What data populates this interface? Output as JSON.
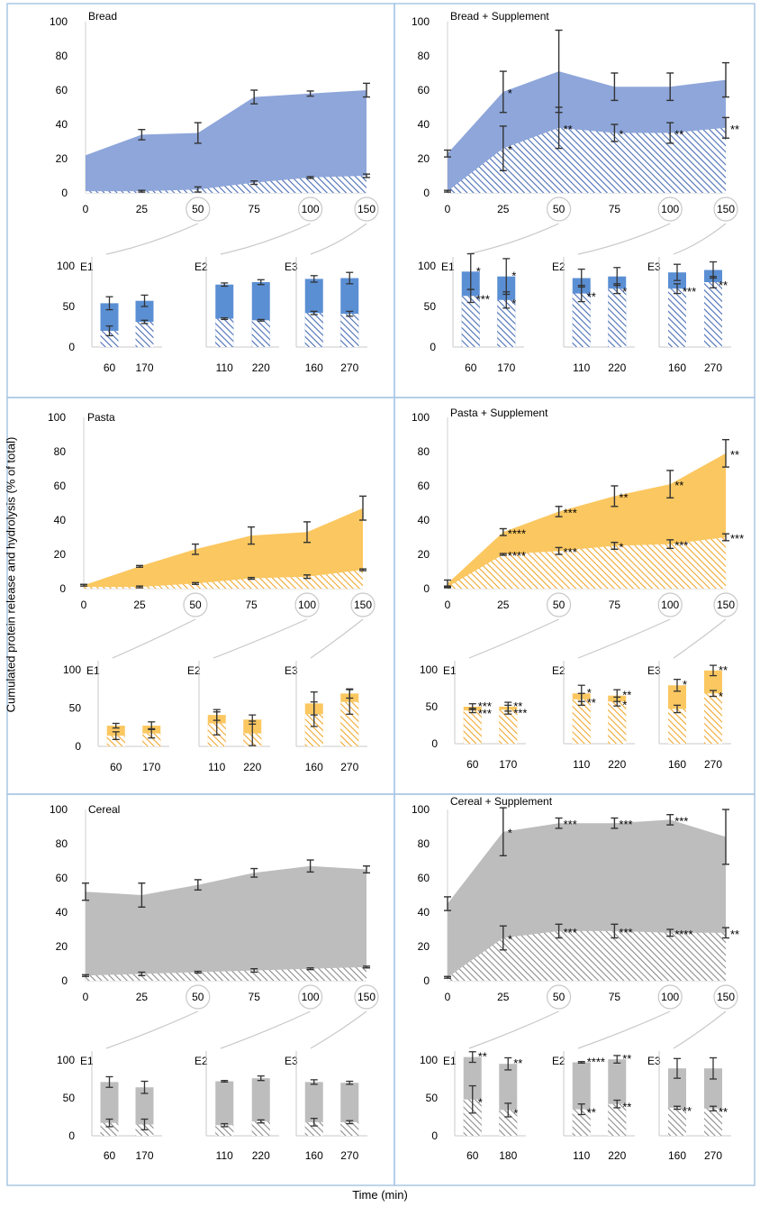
{
  "figure": {
    "ylabel": "Cumulated protein release and hydrolysis (% of total)",
    "xlabel": "Time (min)"
  },
  "chart_data": [
    {
      "type": "area",
      "title": "Bread",
      "color": "#8ea6da",
      "color_dark": "#4a6db5",
      "x": [
        0,
        25,
        50,
        75,
        100,
        150
      ],
      "x_ticks": [
        "0",
        "25",
        "50",
        "75",
        "100",
        "150"
      ],
      "circled_ticks": [
        "50",
        "100",
        "150"
      ],
      "y_ticks": [
        "0",
        "20",
        "40",
        "60",
        "80",
        "100"
      ],
      "ylim": [
        0,
        100
      ],
      "series": [
        {
          "name": "protein release",
          "values": [
            22,
            34,
            35,
            56,
            58,
            60
          ],
          "err": [
            0,
            3,
            6,
            4,
            1.5,
            4
          ],
          "stars": [
            "",
            "",
            "",
            "",
            "",
            ""
          ]
        },
        {
          "name": "hydrolysis",
          "values": [
            1,
            1,
            2,
            6,
            9,
            10
          ],
          "err": [
            0,
            0.5,
            1.5,
            1,
            0.5,
            1
          ],
          "stars": [
            "",
            "",
            "",
            "",
            "",
            ""
          ]
        }
      ],
      "sub": [
        {
          "name": "E1",
          "labels": [
            "60",
            "170"
          ],
          "total": [
            54,
            57
          ],
          "total_err": [
            8,
            7
          ],
          "hydro": [
            20,
            31
          ],
          "hydro_err": [
            6,
            2
          ],
          "total_stars": [
            "",
            ""
          ],
          "hydro_stars": [
            "",
            ""
          ]
        },
        {
          "name": "E2",
          "labels": [
            "110",
            "220"
          ],
          "total": [
            77,
            80
          ],
          "total_err": [
            2,
            3
          ],
          "hydro": [
            35,
            33
          ],
          "hydro_err": [
            1,
            1
          ],
          "total_stars": [
            "",
            ""
          ],
          "hydro_stars": [
            "",
            ""
          ]
        },
        {
          "name": "E3",
          "labels": [
            "160",
            "270"
          ],
          "total": [
            84,
            85
          ],
          "total_err": [
            4,
            7
          ],
          "hydro": [
            42,
            41
          ],
          "hydro_err": [
            2,
            3
          ],
          "total_stars": [
            "",
            ""
          ],
          "hydro_stars": [
            "",
            ""
          ]
        }
      ],
      "sub_y_ticks": [
        "0",
        "50",
        "100"
      ]
    },
    {
      "type": "area",
      "title": "Bread + Supplement",
      "color": "#8ea6da",
      "color_dark": "#4a6db5",
      "x": [
        0,
        25,
        50,
        75,
        100,
        150
      ],
      "x_ticks": [
        "0",
        "25",
        "50",
        "75",
        "100",
        "150"
      ],
      "circled_ticks": [
        "50",
        "100",
        "150"
      ],
      "y_ticks": [
        "0",
        "20",
        "40",
        "60",
        "80",
        "100"
      ],
      "ylim": [
        0,
        100
      ],
      "series": [
        {
          "name": "protein release",
          "values": [
            23,
            59,
            71,
            62,
            62,
            66
          ],
          "err": [
            2,
            12,
            24,
            8,
            8,
            10
          ],
          "stars": [
            "",
            "*",
            "",
            "",
            "",
            ""
          ]
        },
        {
          "name": "hydrolysis",
          "values": [
            1,
            26,
            38,
            35,
            35,
            38
          ],
          "err": [
            0.5,
            13,
            12,
            5,
            6,
            6
          ],
          "stars": [
            "",
            "*",
            "**",
            "*",
            "**",
            "**"
          ]
        }
      ],
      "sub": [
        {
          "name": "E1",
          "labels": [
            "60",
            "170"
          ],
          "total": [
            93,
            87
          ],
          "total_err": [
            22,
            22
          ],
          "hydro": [
            63,
            58
          ],
          "hydro_err": [
            8,
            10
          ],
          "total_stars": [
            "*",
            "*"
          ],
          "hydro_stars": [
            "***",
            "*"
          ]
        },
        {
          "name": "E2",
          "labels": [
            "110",
            "220"
          ],
          "total": [
            85,
            87
          ],
          "total_err": [
            11,
            11
          ],
          "hydro": [
            66,
            72
          ],
          "hydro_err": [
            10,
            6
          ],
          "total_stars": [
            "",
            ""
          ],
          "hydro_stars": [
            "**",
            "*"
          ]
        },
        {
          "name": "E3",
          "labels": [
            "160",
            "270"
          ],
          "total": [
            92,
            95
          ],
          "total_err": [
            10,
            10
          ],
          "hydro": [
            72,
            80
          ],
          "hydro_err": [
            6,
            7
          ],
          "total_stars": [
            "",
            ""
          ],
          "hydro_stars": [
            "***",
            "**"
          ]
        }
      ],
      "sub_y_ticks": [
        "0",
        "50",
        "100"
      ]
    },
    {
      "type": "area",
      "title": "Pasta",
      "color": "#fbc760",
      "color_dark": "#f0a830",
      "x": [
        0,
        25,
        50,
        75,
        100,
        150
      ],
      "x_ticks": [
        "0",
        "25",
        "50",
        "75",
        "100",
        "150"
      ],
      "circled_ticks": [
        "50",
        "100",
        "150"
      ],
      "y_ticks": [
        "0",
        "20",
        "40",
        "60",
        "80",
        "100"
      ],
      "ylim": [
        0,
        100
      ],
      "series": [
        {
          "name": "protein release",
          "values": [
            2,
            13,
            23,
            31,
            33,
            47
          ],
          "err": [
            0.5,
            0.5,
            3,
            5,
            6,
            7
          ],
          "stars": [
            "",
            "",
            "",
            "",
            "",
            ""
          ]
        },
        {
          "name": "hydrolysis",
          "values": [
            1,
            1,
            3,
            6,
            7,
            11
          ],
          "err": [
            0,
            0.5,
            0.5,
            0.5,
            1,
            0.5
          ],
          "stars": [
            "",
            "",
            "",
            "",
            "",
            ""
          ]
        }
      ],
      "sub": [
        {
          "name": "E1",
          "labels": [
            "60",
            "170"
          ],
          "total": [
            27,
            27
          ],
          "total_err": [
            3,
            5
          ],
          "hydro": [
            14,
            17
          ],
          "hydro_err": [
            5,
            6
          ],
          "total_stars": [
            "",
            ""
          ],
          "hydro_stars": [
            "",
            ""
          ]
        },
        {
          "name": "E2",
          "labels": [
            "110",
            "220"
          ],
          "total": [
            41,
            35
          ],
          "total_err": [
            7,
            6
          ],
          "hydro": [
            30,
            17
          ],
          "hydro_err": [
            15,
            16
          ],
          "total_stars": [
            "",
            ""
          ],
          "hydro_stars": [
            "",
            ""
          ]
        },
        {
          "name": "E3",
          "labels": [
            "160",
            "270"
          ],
          "total": [
            56,
            69
          ],
          "total_err": [
            15,
            6
          ],
          "hydro": [
            42,
            58
          ],
          "hydro_err": [
            16,
            16
          ],
          "total_stars": [
            "",
            ""
          ],
          "hydro_stars": [
            "",
            ""
          ]
        }
      ],
      "sub_y_ticks": [
        "0",
        "50",
        "100"
      ]
    },
    {
      "type": "area",
      "title": "Pasta + Supplement",
      "color": "#fbc760",
      "color_dark": "#f0a830",
      "x": [
        0,
        25,
        50,
        75,
        100,
        150
      ],
      "x_ticks": [
        "0",
        "25",
        "50",
        "75",
        "100",
        "150"
      ],
      "circled_ticks": [
        "50",
        "100",
        "150"
      ],
      "y_ticks": [
        "0",
        "20",
        "40",
        "60",
        "80",
        "100"
      ],
      "ylim": [
        0,
        100
      ],
      "series": [
        {
          "name": "protein release",
          "values": [
            3,
            33,
            45,
            54,
            61,
            79
          ],
          "err": [
            2,
            2,
            3,
            6,
            8,
            8
          ],
          "stars": [
            "",
            "****",
            "***",
            "**",
            "**",
            "**"
          ]
        },
        {
          "name": "hydrolysis",
          "values": [
            1,
            20,
            22,
            25,
            26,
            30
          ],
          "err": [
            0.5,
            0.5,
            2,
            2,
            2.5,
            2
          ],
          "stars": [
            "",
            "****",
            "***",
            "*",
            "***",
            "***"
          ]
        }
      ],
      "sub": [
        {
          "name": "E1",
          "labels": [
            "60",
            "170"
          ],
          "total": [
            50,
            50
          ],
          "total_err": [
            4,
            6
          ],
          "hydro": [
            45,
            46
          ],
          "hydro_err": [
            3,
            6
          ],
          "total_stars": [
            "***",
            "**"
          ],
          "hydro_stars": [
            "***",
            "***"
          ]
        },
        {
          "name": "E2",
          "labels": [
            "110",
            "220"
          ],
          "total": [
            68,
            65
          ],
          "total_err": [
            11,
            8
          ],
          "hydro": [
            60,
            57
          ],
          "hydro_err": [
            8,
            6
          ],
          "total_stars": [
            "*",
            "**"
          ],
          "hydro_stars": [
            "**",
            "*"
          ]
        },
        {
          "name": "E3",
          "labels": [
            "160",
            "270"
          ],
          "total": [
            79,
            99
          ],
          "total_err": [
            8,
            7
          ],
          "hydro": [
            47,
            68
          ],
          "hydro_err": [
            5,
            4
          ],
          "total_stars": [
            "*",
            "**"
          ],
          "hydro_stars": [
            "",
            "*"
          ]
        }
      ],
      "sub_y_ticks": [
        "0",
        "50",
        "100"
      ]
    },
    {
      "type": "area",
      "title": "Cereal",
      "color": "#bdbdbd",
      "color_dark": "#8c8c8c",
      "x": [
        0,
        25,
        50,
        75,
        100,
        150
      ],
      "x_ticks": [
        "0",
        "25",
        "50",
        "75",
        "100",
        "150"
      ],
      "circled_ticks": [
        "50",
        "100",
        "150"
      ],
      "y_ticks": [
        "0",
        "20",
        "40",
        "60",
        "80",
        "100"
      ],
      "ylim": [
        0,
        100
      ],
      "series": [
        {
          "name": "protein release",
          "values": [
            52,
            50,
            56,
            63,
            67,
            65
          ],
          "err": [
            5,
            7,
            3,
            2.5,
            3.5,
            2
          ],
          "stars": [
            "",
            "",
            "",
            "",
            "",
            ""
          ]
        },
        {
          "name": "hydrolysis",
          "values": [
            3,
            4,
            5,
            6,
            7,
            8
          ],
          "err": [
            0.5,
            1,
            0.5,
            1,
            0.5,
            0.5
          ],
          "stars": [
            "",
            "",
            "",
            "",
            "",
            ""
          ]
        }
      ],
      "sub": [
        {
          "name": "E1",
          "labels": [
            "60",
            "170"
          ],
          "total": [
            71,
            64
          ],
          "total_err": [
            7,
            8
          ],
          "hydro": [
            17,
            15
          ],
          "hydro_err": [
            5,
            7
          ],
          "total_stars": [
            "",
            ""
          ],
          "hydro_stars": [
            "",
            ""
          ]
        },
        {
          "name": "E2",
          "labels": [
            "110",
            "220"
          ],
          "total": [
            72,
            76
          ],
          "total_err": [
            1,
            3
          ],
          "hydro": [
            14,
            19
          ],
          "hydro_err": [
            2,
            2
          ],
          "total_stars": [
            "",
            ""
          ],
          "hydro_stars": [
            "",
            ""
          ]
        },
        {
          "name": "E3",
          "labels": [
            "160",
            "270"
          ],
          "total": [
            71,
            70
          ],
          "total_err": [
            3,
            2
          ],
          "hydro": [
            18,
            18
          ],
          "hydro_err": [
            5,
            2
          ],
          "total_stars": [
            "",
            ""
          ],
          "hydro_stars": [
            "",
            ""
          ]
        }
      ],
      "sub_y_ticks": [
        "0",
        "50",
        "100"
      ]
    },
    {
      "type": "area",
      "title": "Cereal + Supplement",
      "color": "#bdbdbd",
      "color_dark": "#8c8c8c",
      "x": [
        0,
        25,
        50,
        75,
        100,
        150
      ],
      "x_ticks": [
        "0",
        "25",
        "50",
        "75",
        "100",
        "150"
      ],
      "circled_ticks": [
        "50",
        "100",
        "150"
      ],
      "y_ticks": [
        "0",
        "20",
        "40",
        "60",
        "80",
        "100"
      ],
      "ylim": [
        0,
        100
      ],
      "series": [
        {
          "name": "protein release",
          "values": [
            45,
            87,
            92,
            92,
            94,
            84
          ],
          "err": [
            4,
            14,
            3,
            3,
            3,
            16
          ],
          "stars": [
            "",
            "*",
            "***",
            "***",
            "***",
            ""
          ]
        },
        {
          "name": "hydrolysis",
          "values": [
            2,
            25,
            29,
            29,
            28,
            28
          ],
          "err": [
            0.5,
            7,
            4,
            4,
            2,
            3
          ],
          "stars": [
            "",
            "*",
            "***",
            "***",
            "****",
            "**"
          ]
        }
      ],
      "sub": [
        {
          "name": "E1",
          "labels": [
            "60",
            "180"
          ],
          "total": [
            104,
            95
          ],
          "total_err": [
            7,
            8
          ],
          "hydro": [
            48,
            34
          ],
          "hydro_err": [
            18,
            9
          ],
          "total_stars": [
            "**",
            "**"
          ],
          "hydro_stars": [
            "*",
            "*"
          ]
        },
        {
          "name": "E2",
          "labels": [
            "110",
            "220"
          ],
          "total": [
            97,
            101
          ],
          "total_err": [
            1,
            5
          ],
          "hydro": [
            35,
            42
          ],
          "hydro_err": [
            7,
            5
          ],
          "total_stars": [
            "****",
            "**"
          ],
          "hydro_stars": [
            "**",
            "**"
          ]
        },
        {
          "name": "E3",
          "labels": [
            "160",
            "270"
          ],
          "total": [
            89,
            89
          ],
          "total_err": [
            13,
            14
          ],
          "hydro": [
            37,
            36
          ],
          "hydro_err": [
            2,
            3
          ],
          "total_stars": [
            "",
            ""
          ],
          "hydro_stars": [
            "**",
            "**"
          ]
        }
      ],
      "sub_y_ticks": [
        "0",
        "50",
        "100"
      ]
    }
  ]
}
